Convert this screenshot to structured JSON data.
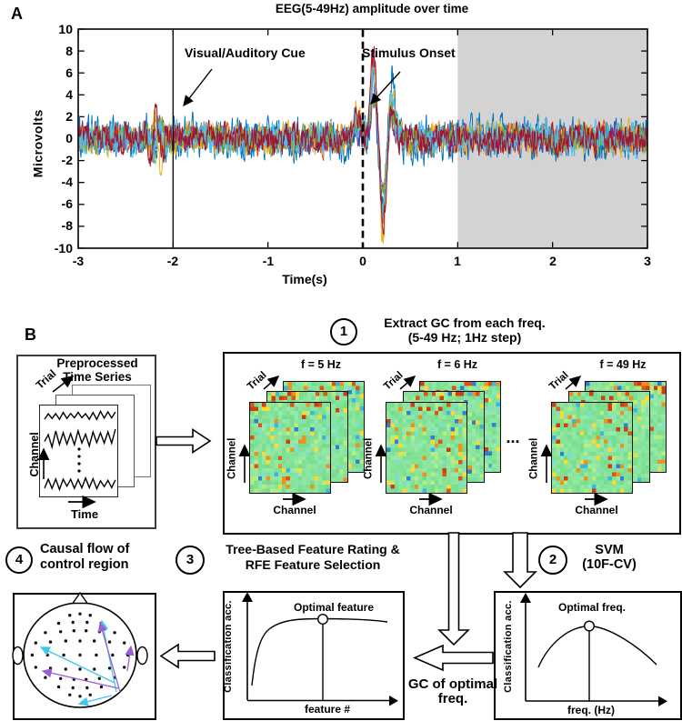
{
  "panelA": {
    "panel_label": "A",
    "title": "EEG(5-49Hz) amplitude over time",
    "ylabel": "Microvolts",
    "xlabel": "Time(s)",
    "cue_label": "Visual/Auditory Cue",
    "onset_label": "Stimulus Onset",
    "xticks": [
      "-3",
      "-2",
      "-1",
      "0",
      "1",
      "2",
      "3"
    ],
    "yticks": [
      "10",
      "8",
      "6",
      "4",
      "2",
      "0",
      "-2",
      "-4",
      "-6",
      "-8",
      "-10"
    ]
  },
  "chart_data": {
    "type": "line",
    "title": "EEG(5-49Hz) amplitude over time",
    "xlabel": "Time(s)",
    "ylabel": "Microvolts",
    "xlim": [
      -3,
      3
    ],
    "ylim": [
      -10,
      10
    ],
    "xticks": [
      -3,
      -2,
      -1,
      0,
      1,
      2,
      3
    ],
    "yticks": [
      10,
      8,
      6,
      4,
      2,
      0,
      -2,
      -4,
      -6,
      -8,
      -10
    ],
    "grid": false,
    "annotations": [
      {
        "text": "Visual/Auditory Cue",
        "line_x": -2,
        "line_style": "solid"
      },
      {
        "text": "Stimulus Onset",
        "line_x": 0,
        "line_style": "dashed"
      }
    ],
    "shaded_region": {
      "x_start": 1,
      "x_end": 3,
      "color": "#d3d3d3"
    },
    "baseline_noise_range_uv": [
      -3,
      3
    ],
    "cue_burst_time": -2.2,
    "evoked_peak_uv": 8.5,
    "evoked_trough_uv": -8.5,
    "evoked_window": [
      0.05,
      0.35
    ],
    "series": [
      {
        "color": "#0072BD",
        "noise_amp": 1.55,
        "cue_burst_amp": 1.2,
        "bump_amp": 1.2,
        "p1": 5.0,
        "n1": 5.5,
        "p2": 5.8
      },
      {
        "color": "#D95319",
        "noise_amp": 1.1,
        "cue_burst_amp": 1.6,
        "bump_amp": 1.6,
        "p1": 7.0,
        "n1": 8.0,
        "p2": 3.0
      },
      {
        "color": "#EDB120",
        "noise_amp": 1.15,
        "cue_burst_amp": 2.6,
        "bump_amp": 2.2,
        "p1": 8.0,
        "n1": 8.8,
        "p2": 4.6
      },
      {
        "color": "#7E2F8E",
        "noise_amp": 0.9,
        "cue_burst_amp": 0.8,
        "bump_amp": 0.8,
        "p1": 3.5,
        "n1": 4.0,
        "p2": 2.0
      },
      {
        "color": "#77AC30",
        "noise_amp": 1.0,
        "cue_burst_amp": 1.4,
        "bump_amp": 1.2,
        "p1": 4.5,
        "n1": 5.0,
        "p2": 2.6
      },
      {
        "color": "#4DBEEE",
        "noise_amp": 1.2,
        "cue_burst_amp": 1.2,
        "bump_amp": 1.5,
        "p1": 6.0,
        "n1": 6.5,
        "p2": 4.6
      },
      {
        "color": "#A2142F",
        "noise_amp": 1.1,
        "cue_burst_amp": 2.2,
        "bump_amp": 2.0,
        "p1": 7.8,
        "n1": 7.6,
        "p2": 3.2
      }
    ]
  },
  "panelB": {
    "panel_label": "B",
    "preprocess_box": {
      "title_line1": "Preprocessed",
      "title_line2": "Time Series",
      "trial_label": "Trial",
      "channel_label": "Channel",
      "time_label": "Time"
    },
    "step1": {
      "number": "1",
      "title_line1": "Extract GC from each freq.",
      "title_line2": "(5-49 Hz; 1Hz step)",
      "ellipsis": "...",
      "trial_label": "Trial",
      "channel_y_label": "Channel",
      "channel_x_label": "Channel",
      "stacks": [
        {
          "freq_label": "f = 5 Hz"
        },
        {
          "freq_label": "f = 6 Hz"
        },
        {
          "freq_label": "f = 49 Hz"
        }
      ]
    },
    "step2": {
      "number": "2",
      "title_line1": "SVM",
      "title_line2": "(10F-CV)",
      "plot": {
        "ylabel": "Classification acc.",
        "xlabel": "freq. (Hz)",
        "marker_label": "Optimal freq."
      }
    },
    "step3": {
      "number": "3",
      "title_line1": "Tree-Based Feature Rating &",
      "title_line2": "RFE Feature Selection",
      "plot": {
        "ylabel": "Classification acc.",
        "xlabel": "feature #",
        "marker_label": "Optimal feature"
      }
    },
    "step4": {
      "number": "4",
      "title_line1": "Causal flow of",
      "title_line2": "control region"
    },
    "gc_label_line1": "GC of optimal",
    "gc_label_line2": "freq.",
    "heatmap": {
      "cols": 20,
      "rows": 22,
      "base_color": [
        134,
        227,
        154
      ],
      "accent_colors": {
        "red": "#d23c0f",
        "red2": "#e2530f",
        "orange": "#f2901c",
        "yellow": "#ffd92e",
        "cyan": "#38b6e8",
        "blue": "#2f7fd8",
        "light_green": "#b9ec7f",
        "pale_cyan": "#7fe0c8"
      }
    },
    "head": {
      "electrode_color": "#111111",
      "arrow_colors": {
        "cyan": "#3fc9ea",
        "purple": "#9a5fd2"
      },
      "electrodes": [
        [
          0.0,
          -0.88
        ],
        [
          -0.2,
          -0.85
        ],
        [
          0.2,
          -0.85
        ],
        [
          -0.42,
          -0.68
        ],
        [
          -0.14,
          -0.7
        ],
        [
          0.14,
          -0.7
        ],
        [
          0.42,
          -0.68
        ],
        [
          -0.68,
          -0.48
        ],
        [
          -0.38,
          -0.5
        ],
        [
          -0.12,
          -0.52
        ],
        [
          0.12,
          -0.52
        ],
        [
          0.38,
          -0.5
        ],
        [
          0.68,
          -0.48
        ],
        [
          -0.87,
          -0.26
        ],
        [
          -0.58,
          -0.28
        ],
        [
          -0.28,
          -0.3
        ],
        [
          0.0,
          -0.3
        ],
        [
          0.28,
          -0.3
        ],
        [
          0.58,
          -0.28
        ],
        [
          0.87,
          -0.26
        ],
        [
          -0.94,
          0.0
        ],
        [
          -0.64,
          0.0
        ],
        [
          -0.32,
          0.0
        ],
        [
          0.0,
          0.0
        ],
        [
          0.32,
          0.0
        ],
        [
          0.64,
          0.0
        ],
        [
          0.94,
          0.0
        ],
        [
          -0.87,
          0.26
        ],
        [
          -0.58,
          0.28
        ],
        [
          -0.28,
          0.3
        ],
        [
          0.0,
          0.3
        ],
        [
          0.28,
          0.3
        ],
        [
          0.58,
          0.28
        ],
        [
          0.87,
          0.26
        ],
        [
          -0.68,
          0.48
        ],
        [
          -0.38,
          0.5
        ],
        [
          -0.12,
          0.52
        ],
        [
          0.12,
          0.52
        ],
        [
          0.38,
          0.5
        ],
        [
          0.68,
          0.48
        ],
        [
          -0.42,
          0.68
        ],
        [
          -0.14,
          0.7
        ],
        [
          0.14,
          0.7
        ],
        [
          0.42,
          0.68
        ],
        [
          -0.2,
          0.85
        ],
        [
          0.2,
          0.85
        ],
        [
          0.0,
          0.88
        ]
      ],
      "arrows": [
        {
          "color": "cyan",
          "from": [
            126,
            751
          ],
          "to": [
            45,
            712
          ]
        },
        {
          "color": "cyan",
          "from": [
            128,
            761
          ],
          "to": [
            112,
            683
          ]
        },
        {
          "color": "cyan",
          "from": [
            123,
            765
          ],
          "to": [
            87,
            774
          ]
        },
        {
          "color": "purple",
          "from": [
            130,
            757
          ],
          "to": [
            47,
            738
          ]
        },
        {
          "color": "purple",
          "from": [
            132,
            761
          ],
          "to": [
            110,
            685
          ]
        },
        {
          "color": "purple",
          "from": [
            140,
            738
          ],
          "to": [
            144,
            711
          ]
        }
      ]
    }
  }
}
